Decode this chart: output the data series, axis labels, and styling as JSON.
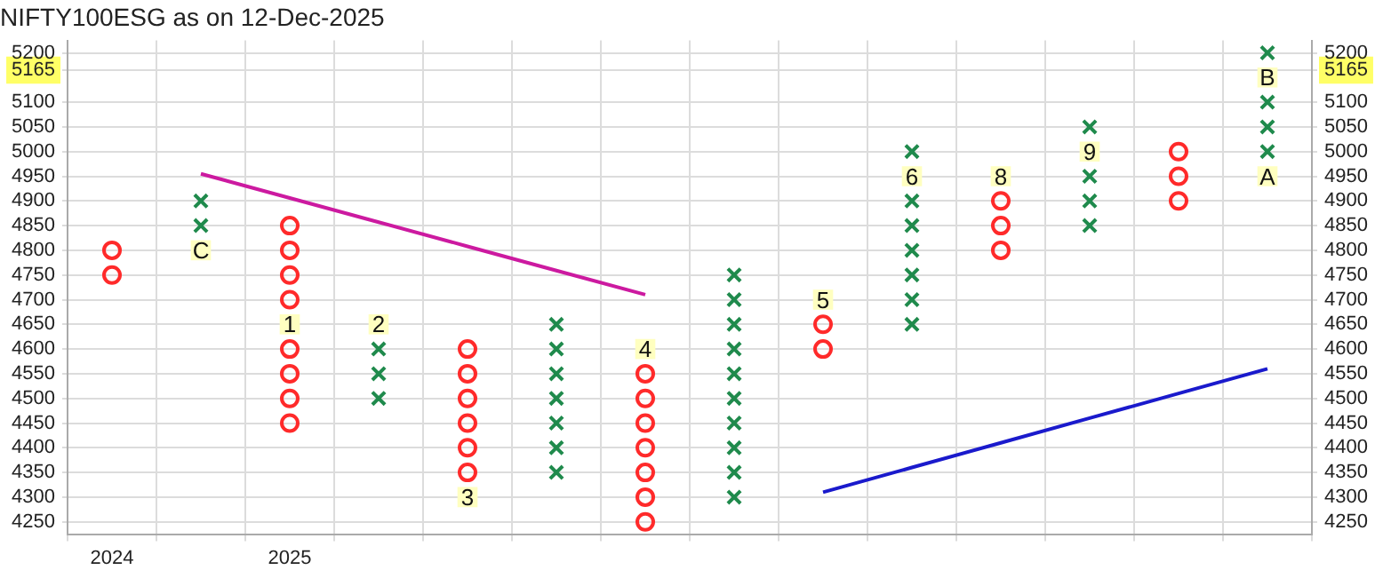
{
  "chart_data": {
    "type": "scatter",
    "title": "NIFTY100ESG as on 12-Dec-2025",
    "categories": [
      "2024",
      null,
      "2025",
      null,
      null,
      null,
      null,
      null,
      null,
      null,
      null,
      null,
      null,
      null
    ],
    "series": [
      {
        "marker": "cross",
        "color": "#1f8a4c",
        "values": [
          null,
          4900,
          null,
          4600,
          null,
          4650,
          null,
          4750,
          null,
          5000,
          null,
          5050,
          null,
          5200
        ]
      },
      {
        "marker": "cross",
        "color": "#1f8a4c",
        "values": [
          null,
          4850,
          null,
          4550,
          null,
          4600,
          null,
          4700,
          null,
          4900,
          null,
          4950,
          null,
          5100
        ]
      },
      {
        "marker": "cross",
        "color": "#1f8a4c",
        "values": [
          null,
          null,
          null,
          4500,
          null,
          4550,
          null,
          4650,
          null,
          4850,
          null,
          4900,
          null,
          5050
        ]
      },
      {
        "marker": "cross",
        "color": "#1f8a4c",
        "values": [
          null,
          null,
          null,
          null,
          null,
          4500,
          null,
          4600,
          null,
          4800,
          null,
          4850,
          null,
          5000
        ]
      },
      {
        "marker": "cross",
        "color": "#1f8a4c",
        "values": [
          null,
          null,
          null,
          null,
          null,
          4450,
          null,
          4550,
          null,
          4750,
          null,
          null,
          null,
          null
        ]
      },
      {
        "marker": "cross",
        "color": "#1f8a4c",
        "values": [
          null,
          null,
          null,
          null,
          null,
          4400,
          null,
          4500,
          null,
          4700,
          null,
          null,
          null,
          null
        ]
      },
      {
        "marker": "cross",
        "color": "#1f8a4c",
        "values": [
          null,
          null,
          null,
          null,
          null,
          4350,
          null,
          4450,
          null,
          4650,
          null,
          null,
          null,
          null
        ]
      },
      {
        "marker": "cross",
        "color": "#1f8a4c",
        "values": [
          null,
          null,
          null,
          null,
          null,
          null,
          null,
          4400,
          null,
          null,
          null,
          null,
          null,
          null
        ]
      },
      {
        "marker": "cross",
        "color": "#1f8a4c",
        "values": [
          null,
          null,
          null,
          null,
          null,
          null,
          null,
          4350,
          null,
          null,
          null,
          null,
          null,
          null
        ]
      },
      {
        "marker": "cross",
        "color": "#1f8a4c",
        "values": [
          null,
          null,
          null,
          null,
          null,
          null,
          null,
          4300,
          null,
          null,
          null,
          null,
          null,
          null
        ]
      },
      {
        "marker": "circle",
        "color": "#ff2a2a",
        "values": [
          4800,
          null,
          4850,
          null,
          4600,
          null,
          4550,
          null,
          4650,
          null,
          4900,
          null,
          5000,
          null
        ]
      },
      {
        "marker": "circle",
        "color": "#ff2a2a",
        "values": [
          4750,
          null,
          4800,
          null,
          4550,
          null,
          4500,
          null,
          4600,
          null,
          4850,
          null,
          4950,
          null
        ]
      },
      {
        "marker": "circle",
        "color": "#ff2a2a",
        "values": [
          null,
          null,
          4750,
          null,
          4500,
          null,
          4450,
          null,
          null,
          null,
          4800,
          null,
          4900,
          null
        ]
      },
      {
        "marker": "circle",
        "color": "#ff2a2a",
        "values": [
          null,
          null,
          4700,
          null,
          4450,
          null,
          4400,
          null,
          null,
          null,
          null,
          null,
          null,
          null
        ]
      },
      {
        "marker": "circle",
        "color": "#ff2a2a",
        "values": [
          null,
          null,
          4600,
          null,
          4400,
          null,
          4350,
          null,
          null,
          null,
          null,
          null,
          null,
          null
        ]
      },
      {
        "marker": "circle",
        "color": "#ff2a2a",
        "values": [
          null,
          null,
          4550,
          null,
          4350,
          null,
          4300,
          null,
          null,
          null,
          null,
          null,
          null,
          null
        ]
      },
      {
        "marker": "circle",
        "color": "#ff2a2a",
        "values": [
          null,
          null,
          4500,
          null,
          null,
          null,
          4250,
          null,
          null,
          null,
          null,
          null,
          null,
          null
        ]
      },
      {
        "marker": "circle",
        "color": "#ff2a2a",
        "values": [
          null,
          null,
          4450,
          null,
          null,
          null,
          null,
          null,
          null,
          null,
          null,
          null,
          null,
          null
        ]
      },
      {
        "marker": "square",
        "color": "#ffffc0",
        "values": [
          null,
          4800,
          4650,
          4650,
          4300,
          null,
          4600,
          null,
          4700,
          4950,
          4950,
          5000,
          null,
          4950
        ]
      },
      {
        "marker": "square",
        "color": "#ffffc0",
        "values": [
          null,
          null,
          null,
          null,
          null,
          null,
          null,
          null,
          null,
          null,
          null,
          null,
          null,
          5150
        ]
      },
      {
        "type": "line",
        "marker": "none",
        "color": "#cc1aa0",
        "values": [
          null,
          4955,
          4906,
          4857,
          4808,
          4759,
          4710,
          null,
          null,
          null,
          null,
          null,
          null,
          null
        ]
      },
      {
        "type": "line",
        "marker": "none",
        "color": "#1a1acc",
        "values": [
          null,
          null,
          null,
          null,
          null,
          null,
          null,
          null,
          4310,
          4360,
          4410,
          4460,
          4510,
          4560
        ]
      }
    ],
    "annotations": [
      "C",
      "1",
      "2",
      "3",
      "4",
      "5",
      "6",
      "8",
      "9",
      "A",
      "B"
    ],
    "ylim": [
      4225,
      5225
    ],
    "yticks": [
      4250,
      4300,
      4350,
      4400,
      4450,
      4500,
      4550,
      4600,
      4650,
      4700,
      4750,
      4800,
      4850,
      4900,
      4950,
      5000,
      5050,
      5100,
      {
        "value": 5165,
        "label": "5165"
      },
      5200
    ],
    "y2lim": [
      4225,
      5225
    ],
    "y2ticks": [
      4250,
      4300,
      4350,
      4400,
      4450,
      4500,
      4550,
      4600,
      4650,
      4700,
      4750,
      4800,
      4850,
      4900,
      4950,
      5000,
      5050,
      5100,
      {
        "value": 5165,
        "label": "5165"
      },
      5200
    ],
    "grid": true,
    "legend": false
  }
}
